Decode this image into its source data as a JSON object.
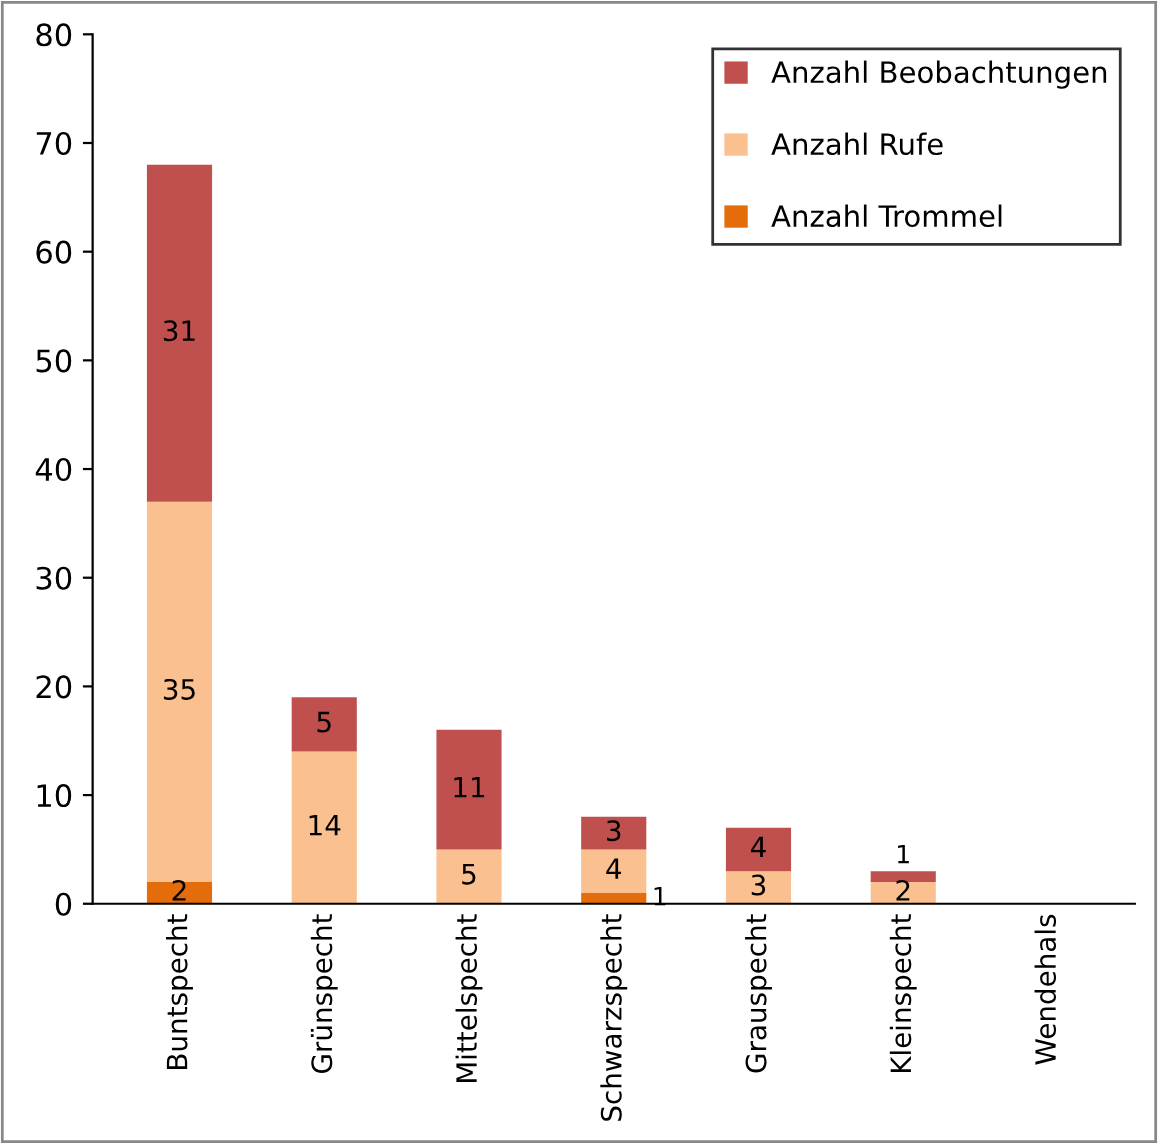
{
  "chart_data": {
    "type": "bar",
    "stacked": true,
    "categories": [
      "Buntspecht",
      "Grünspecht",
      "Mittelspecht",
      "Schwarzspecht",
      "Grauspecht",
      "Kleinspecht",
      "Wendehals"
    ],
    "series": [
      {
        "name": "Anzahl Trommel",
        "color": "#e46c0a",
        "values": [
          2,
          0,
          0,
          1,
          0,
          0,
          0
        ],
        "value_labels": [
          "2",
          null,
          null,
          "1",
          null,
          null,
          null
        ]
      },
      {
        "name": "Anzahl Rufe",
        "color": "#fac090",
        "values": [
          35,
          14,
          5,
          4,
          3,
          2,
          0
        ],
        "value_labels": [
          "35",
          "14",
          "5",
          "4",
          "3",
          "2",
          null
        ]
      },
      {
        "name": "Anzahl Beobachtungen",
        "color": "#c0504d",
        "values": [
          31,
          5,
          11,
          3,
          4,
          1,
          0
        ],
        "value_labels": [
          "31",
          "5",
          "11",
          "3",
          "4",
          "1",
          null
        ]
      }
    ],
    "ylim": [
      0,
      80
    ],
    "yticks": [
      0,
      10,
      20,
      30,
      40,
      50,
      60,
      70,
      80
    ],
    "grid": false,
    "legend": "top right"
  }
}
